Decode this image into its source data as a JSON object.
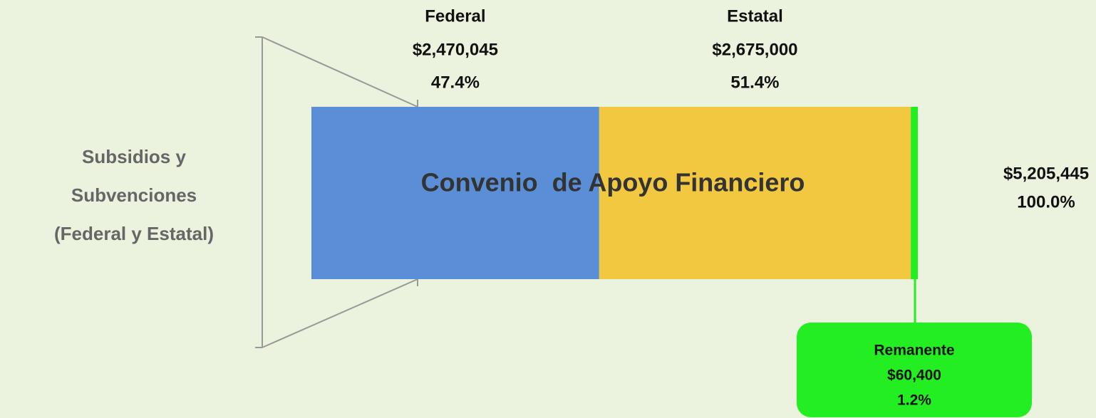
{
  "chart_data": {
    "type": "bar",
    "orientation": "horizontal",
    "stacked": true,
    "category_lines": [
      "Subsidios y",
      "Subvenciones",
      "(Federal y Estatal)"
    ],
    "annotation": "Convenio  de Apoyo Financiero",
    "series": [
      {
        "name": "Federal",
        "color": "#5a8fd8",
        "values": [
          2470045
        ],
        "value_labels": [
          "$2,470,045"
        ],
        "percent_labels": [
          "47.4%"
        ]
      },
      {
        "name": "Estatal",
        "color": "#f1c83f",
        "values": [
          2675000
        ],
        "value_labels": [
          "$2,675,000"
        ],
        "percent_labels": [
          "51.4%"
        ]
      },
      {
        "name": "Remanente",
        "color": "#22ee22",
        "values": [
          60400
        ],
        "value_labels": [
          "$60,400"
        ],
        "percent_labels": [
          "1.2%"
        ]
      }
    ],
    "total": 5205445,
    "total_label": "$5,205,445",
    "total_percent_label": "100.0%"
  }
}
